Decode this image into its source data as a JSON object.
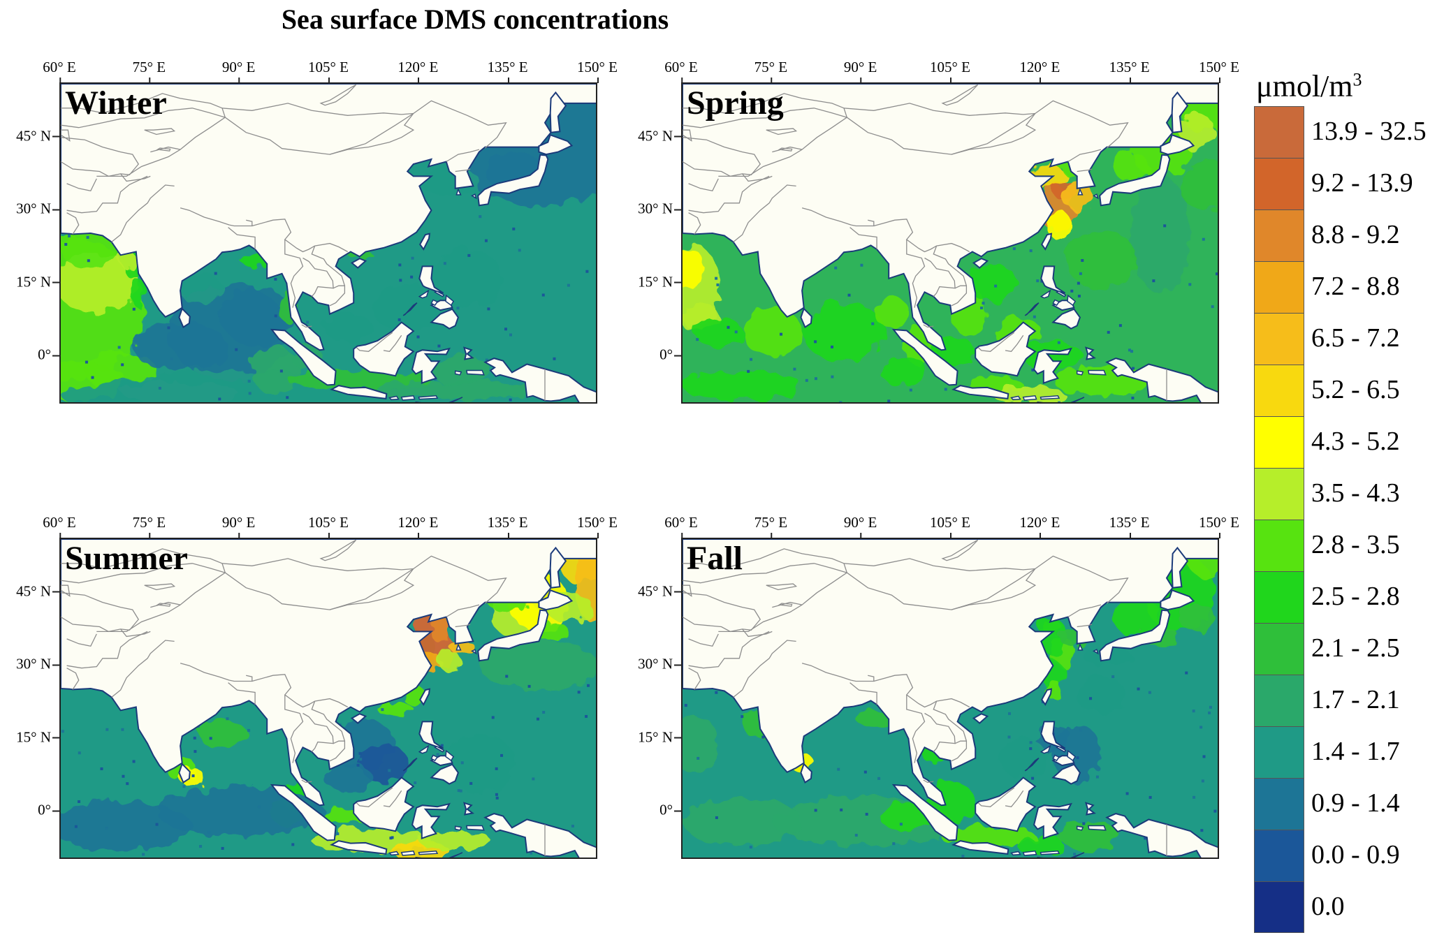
{
  "title": "Sea surface DMS concentrations",
  "x_ticks": [
    "60° E",
    "75° E",
    "90° E",
    "105° E",
    "120° E",
    "135° E",
    "150° E"
  ],
  "y_ticks": [
    "45° N",
    "30° N",
    "15° N",
    "0°"
  ],
  "panels": [
    {
      "name": "Winter",
      "ocean_color": "#1f9a86",
      "open_ocean_class": "1.4 - 1.7",
      "hotspots": [
        "0.9 - 1.4 in Bay of Bengal",
        "2.8 - 3.5 in Arabian Sea"
      ]
    },
    {
      "name": "Spring",
      "ocean_color": "#2fb35a",
      "open_ocean_class": "2.1 - 2.5",
      "hotspots": [
        "8.8 - 9.2 in Yellow / East China Sea",
        "3.5 - 4.3 in Arabian Sea"
      ]
    },
    {
      "name": "Summer",
      "ocean_color": "#1f9a86",
      "open_ocean_class": "1.4 - 1.7",
      "hotspots": [
        "13.9 - 32.5 in Yellow Sea",
        "5.2 - 6.5 north-east Pacific",
        "0.9 - 1.4 South China Sea"
      ]
    },
    {
      "name": "Fall",
      "ocean_color": "#1f9a86",
      "open_ocean_class": "1.4 - 1.7",
      "hotspots": [
        "2.8 - 3.5 in Yellow / East China Sea",
        "0.9 - 1.4 Philippine Sea"
      ]
    }
  ],
  "legend": {
    "title": "μmol/m",
    "title_sup": "3",
    "items": [
      {
        "label": "13.9 - 32.5",
        "color": "#c96a3a"
      },
      {
        "label": "9.2 - 13.9",
        "color": "#d2652a"
      },
      {
        "label": "8.8 - 9.2",
        "color": "#e0872a"
      },
      {
        "label": "7.2 - 8.8",
        "color": "#f0a818"
      },
      {
        "label": "6.5 - 7.2",
        "color": "#f6bd1a"
      },
      {
        "label": "5.2 - 6.5",
        "color": "#f8d90f"
      },
      {
        "label": "4.3 - 5.2",
        "color": "#ffff00"
      },
      {
        "label": "3.5 - 4.3",
        "color": "#b6ee2a"
      },
      {
        "label": "2.8 - 3.5",
        "color": "#57e310"
      },
      {
        "label": "2.5 - 2.8",
        "color": "#20d61c"
      },
      {
        "label": "2.1 - 2.5",
        "color": "#2fbf3a"
      },
      {
        "label": "1.7 - 2.1",
        "color": "#2aa86a"
      },
      {
        "label": "1.4 - 1.7",
        "color": "#1f9a86"
      },
      {
        "label": "0.9 - 1.4",
        "color": "#1d7596"
      },
      {
        "label": "0.0 - 0.9",
        "color": "#1b5799"
      },
      {
        "label": "0.0",
        "color": "#152f86"
      }
    ]
  },
  "land_color": "#fdfdf4",
  "border_color": "#8d8d8d"
}
